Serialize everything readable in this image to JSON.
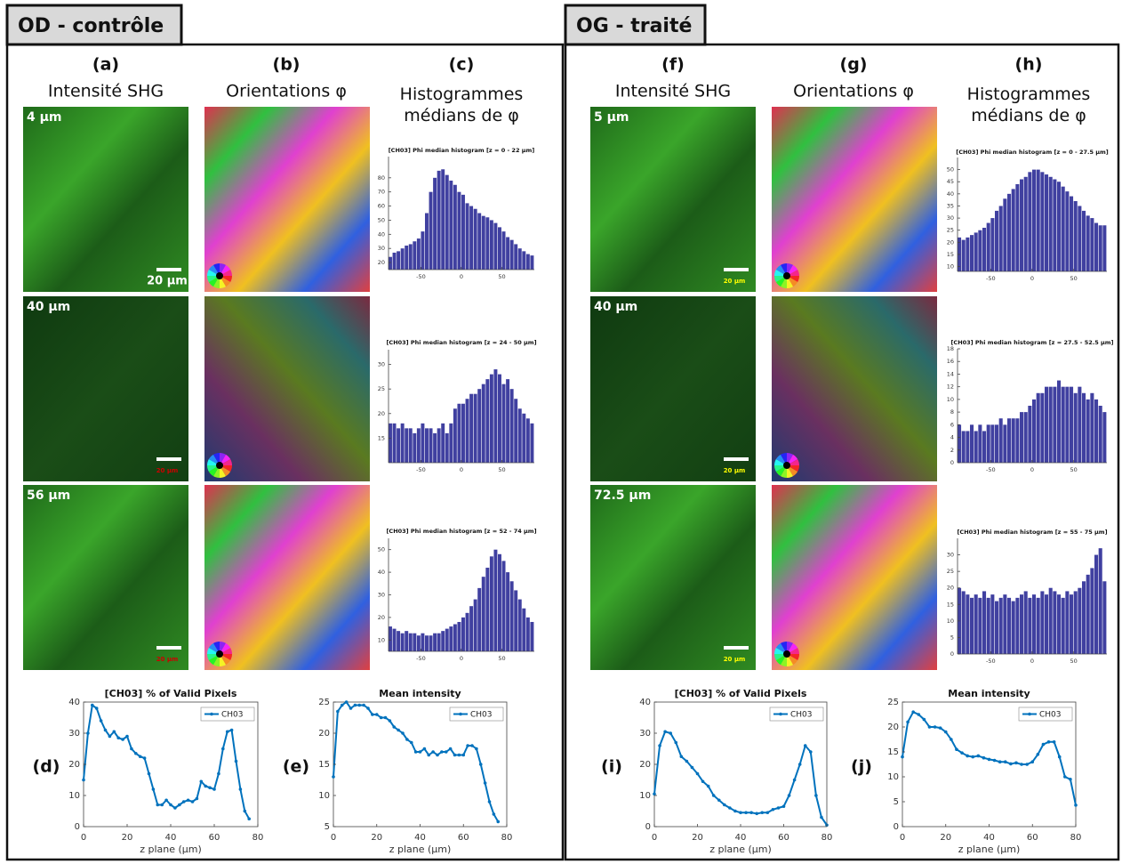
{
  "panels": [
    {
      "title": "OD - contrôle",
      "columns": [
        {
          "letter": "(a)",
          "title": "Intensité SHG"
        },
        {
          "letter": "(b)",
          "title": "Orientations φ"
        },
        {
          "letter": "(c)",
          "title": "Histogrammes médians de φ"
        }
      ],
      "depth_labels": [
        "4 µm",
        "40 µm",
        "56 µm"
      ],
      "scale_labels": [
        "20 µm",
        "20 µm",
        "20 µm"
      ],
      "plot_letters": [
        "(d)",
        "(e)"
      ]
    },
    {
      "title": "OG - traité",
      "columns": [
        {
          "letter": "(f)",
          "title": "Intensité SHG"
        },
        {
          "letter": "(g)",
          "title": "Orientations φ"
        },
        {
          "letter": "(h)",
          "title": "Histogrammes médians de φ"
        }
      ],
      "depth_labels": [
        "5 µm",
        "40 µm",
        "72.5 µm"
      ],
      "scale_labels": [
        "20 µm",
        "20 µm",
        "20 µm"
      ],
      "plot_letters": [
        "(i)",
        "(j)"
      ]
    }
  ],
  "chart_data": [
    {
      "type": "histogram",
      "title": "[CH03] Phi median histogram [z = 0 - 22 µm]",
      "color": "#4040a0",
      "bins": [
        -90,
        -85,
        -80,
        -75,
        -70,
        -65,
        -60,
        -55,
        -50,
        -45,
        -40,
        -35,
        -30,
        -25,
        -20,
        -15,
        -10,
        -5,
        0,
        5,
        10,
        15,
        20,
        25,
        30,
        35,
        40,
        45,
        50,
        55,
        60,
        65,
        70,
        75,
        80,
        85,
        90
      ],
      "values": [
        24,
        27,
        28,
        30,
        32,
        33,
        35,
        37,
        42,
        55,
        70,
        80,
        85,
        86,
        82,
        78,
        75,
        70,
        68,
        62,
        60,
        58,
        55,
        53,
        52,
        50,
        48,
        45,
        42,
        38,
        36,
        33,
        30,
        28,
        26,
        25
      ],
      "xlim": [
        -90,
        90
      ],
      "ylim": [
        15,
        95
      ],
      "xticks": [
        -50,
        0,
        50
      ],
      "yticks": [
        20,
        30,
        40,
        50,
        60,
        70,
        80
      ]
    },
    {
      "type": "histogram",
      "title": "[CH03] Phi median histogram [z = 24 - 50 µm]",
      "color": "#4040a0",
      "bins": [
        -90,
        -85,
        -80,
        -75,
        -70,
        -65,
        -60,
        -55,
        -50,
        -45,
        -40,
        -35,
        -30,
        -25,
        -20,
        -15,
        -10,
        -5,
        0,
        5,
        10,
        15,
        20,
        25,
        30,
        35,
        40,
        45,
        50,
        55,
        60,
        65,
        70,
        75,
        80,
        85,
        90
      ],
      "values": [
        18,
        18,
        17,
        18,
        17,
        17,
        16,
        17,
        18,
        17,
        17,
        16,
        17,
        18,
        16,
        18,
        21,
        22,
        22,
        23,
        24,
        24,
        25,
        26,
        27,
        28,
        29,
        28,
        26,
        27,
        25,
        23,
        21,
        20,
        19,
        18
      ],
      "xlim": [
        -90,
        90
      ],
      "ylim": [
        10,
        33
      ],
      "xticks": [
        -50,
        0,
        50
      ],
      "yticks": [
        15,
        20,
        25,
        30
      ]
    },
    {
      "type": "histogram",
      "title": "[CH03] Phi median histogram [z = 52 - 74 µm]",
      "color": "#4040a0",
      "bins": [
        -90,
        -85,
        -80,
        -75,
        -70,
        -65,
        -60,
        -55,
        -50,
        -45,
        -40,
        -35,
        -30,
        -25,
        -20,
        -15,
        -10,
        -5,
        0,
        5,
        10,
        15,
        20,
        25,
        30,
        35,
        40,
        45,
        50,
        55,
        60,
        65,
        70,
        75,
        80,
        85,
        90
      ],
      "values": [
        16,
        15,
        14,
        13,
        14,
        13,
        13,
        12,
        13,
        12,
        12,
        13,
        13,
        14,
        15,
        16,
        17,
        18,
        20,
        22,
        25,
        28,
        33,
        38,
        42,
        47,
        50,
        48,
        45,
        40,
        36,
        32,
        28,
        24,
        20,
        18
      ],
      "xlim": [
        -90,
        90
      ],
      "ylim": [
        5,
        55
      ],
      "xticks": [
        -50,
        0,
        50
      ],
      "yticks": [
        10,
        20,
        30,
        40,
        50
      ]
    },
    {
      "type": "line",
      "title": "[CH03] % of Valid Pixels",
      "xlabel": "z plane (µm)",
      "x": [
        0,
        2,
        4,
        6,
        8,
        10,
        12,
        14,
        16,
        18,
        20,
        22,
        24,
        26,
        28,
        30,
        32,
        34,
        36,
        38,
        40,
        42,
        44,
        46,
        48,
        50,
        52,
        54,
        56,
        58,
        60,
        62,
        64,
        66,
        68,
        70,
        72,
        74,
        76
      ],
      "series": [
        {
          "name": "CH03",
          "color": "#0072bd",
          "values": [
            15,
            30,
            39,
            38,
            34,
            31,
            29,
            30.5,
            28.5,
            28,
            29,
            25,
            23.5,
            22.5,
            22,
            17,
            12,
            7,
            7,
            8.5,
            7,
            6,
            7,
            8,
            8.5,
            8,
            9,
            14.5,
            13,
            12.5,
            12,
            17,
            25,
            30.5,
            31,
            21,
            12,
            5,
            2.5
          ]
        }
      ],
      "xlim": [
        0,
        80
      ],
      "ylim": [
        0,
        40
      ],
      "xticks": [
        0,
        20,
        40,
        60,
        80
      ],
      "yticks": [
        0,
        10,
        20,
        30,
        40
      ]
    },
    {
      "type": "line",
      "title": "Mean intensity",
      "xlabel": "z plane (µm)",
      "x": [
        0,
        2,
        4,
        6,
        8,
        10,
        12,
        14,
        16,
        18,
        20,
        22,
        24,
        26,
        28,
        30,
        32,
        34,
        36,
        38,
        40,
        42,
        44,
        46,
        48,
        50,
        52,
        54,
        56,
        58,
        60,
        62,
        64,
        66,
        68,
        70,
        72,
        74,
        76
      ],
      "series": [
        {
          "name": "CH03",
          "color": "#0072bd",
          "values": [
            13,
            23.5,
            24.5,
            25,
            24,
            24.5,
            24.5,
            24.5,
            24,
            23,
            23,
            22.5,
            22.5,
            22,
            21,
            20.5,
            20,
            19,
            18.5,
            17,
            17,
            17.5,
            16.5,
            17,
            16.5,
            17,
            17,
            17.5,
            16.5,
            16.5,
            16.5,
            18,
            18,
            17.5,
            15,
            12,
            9,
            7,
            5.8
          ]
        }
      ],
      "xlim": [
        0,
        80
      ],
      "ylim": [
        5,
        25
      ],
      "xticks": [
        0,
        20,
        40,
        60,
        80
      ],
      "yticks": [
        5,
        10,
        15,
        20,
        25
      ]
    },
    {
      "type": "histogram",
      "title": "[CH03] Phi median histogram [z = 0 - 27.5 µm]",
      "color": "#4040a0",
      "bins": [
        -90,
        -85,
        -80,
        -75,
        -70,
        -65,
        -60,
        -55,
        -50,
        -45,
        -40,
        -35,
        -30,
        -25,
        -20,
        -15,
        -10,
        -5,
        0,
        5,
        10,
        15,
        20,
        25,
        30,
        35,
        40,
        45,
        50,
        55,
        60,
        65,
        70,
        75,
        80,
        85,
        90
      ],
      "values": [
        22,
        21,
        22,
        23,
        24,
        25,
        26,
        28,
        30,
        33,
        35,
        38,
        40,
        42,
        44,
        46,
        47,
        49,
        50,
        50,
        49,
        48,
        47,
        46,
        45,
        43,
        41,
        39,
        37,
        35,
        33,
        31,
        30,
        28,
        27,
        27
      ],
      "xlim": [
        -90,
        90
      ],
      "ylim": [
        8,
        55
      ],
      "xticks": [
        -50,
        0,
        50
      ],
      "yticks": [
        10,
        15,
        20,
        25,
        30,
        35,
        40,
        45,
        50
      ]
    },
    {
      "type": "histogram",
      "title": "[CH03] Phi median histogram [z = 27.5 - 52.5 µm]",
      "color": "#4040a0",
      "bins": [
        -90,
        -85,
        -80,
        -75,
        -70,
        -65,
        -60,
        -55,
        -50,
        -45,
        -40,
        -35,
        -30,
        -25,
        -20,
        -15,
        -10,
        -5,
        0,
        5,
        10,
        15,
        20,
        25,
        30,
        35,
        40,
        45,
        50,
        55,
        60,
        65,
        70,
        75,
        80,
        85,
        90
      ],
      "values": [
        6,
        5,
        5,
        6,
        5,
        6,
        5,
        6,
        6,
        6,
        7,
        6,
        7,
        7,
        7,
        8,
        8,
        9,
        10,
        11,
        11,
        12,
        12,
        12,
        13,
        12,
        12,
        12,
        11,
        12,
        11,
        10,
        11,
        10,
        9,
        8
      ],
      "xlim": [
        -90,
        90
      ],
      "ylim": [
        0,
        18
      ],
      "xticks": [
        -50,
        0,
        50
      ],
      "yticks": [
        0,
        2,
        4,
        6,
        8,
        10,
        12,
        14,
        16,
        18
      ]
    },
    {
      "type": "histogram",
      "title": "[CH03] Phi median histogram [z = 55 - 75 µm]",
      "color": "#4040a0",
      "bins": [
        -90,
        -85,
        -80,
        -75,
        -70,
        -65,
        -60,
        -55,
        -50,
        -45,
        -40,
        -35,
        -30,
        -25,
        -20,
        -15,
        -10,
        -5,
        0,
        5,
        10,
        15,
        20,
        25,
        30,
        35,
        40,
        45,
        50,
        55,
        60,
        65,
        70,
        75,
        80,
        85,
        90
      ],
      "values": [
        20,
        19,
        18,
        17,
        18,
        17,
        19,
        17,
        18,
        16,
        17,
        18,
        17,
        16,
        17,
        18,
        19,
        17,
        18,
        17,
        19,
        18,
        20,
        19,
        18,
        17,
        19,
        18,
        19,
        20,
        22,
        24,
        26,
        30,
        32,
        22
      ],
      "xlim": [
        -90,
        90
      ],
      "ylim": [
        0,
        35
      ],
      "xticks": [
        -50,
        0,
        50
      ],
      "yticks": [
        0,
        5,
        10,
        15,
        20,
        25,
        30
      ]
    },
    {
      "type": "line",
      "title": "[CH03] % of Valid Pixels",
      "xlabel": "z plane (µm)",
      "x": [
        0,
        2.5,
        5,
        7.5,
        10,
        12.5,
        15,
        17.5,
        20,
        22.5,
        25,
        27.5,
        30,
        32.5,
        35,
        37.5,
        40,
        42.5,
        45,
        47.5,
        50,
        52.5,
        55,
        57.5,
        60,
        62.5,
        65,
        67.5,
        70,
        72.5,
        75,
        77.5,
        80
      ],
      "series": [
        {
          "name": "CH03",
          "color": "#0072bd",
          "values": [
            10.5,
            26,
            30.5,
            30,
            27,
            22.5,
            21,
            19,
            17,
            14.5,
            13,
            10,
            8.5,
            7,
            6,
            5,
            4.5,
            4.5,
            4.5,
            4.2,
            4.5,
            4.5,
            5.5,
            6,
            6.5,
            10,
            15,
            20,
            26,
            24,
            10,
            3,
            0.5
          ]
        }
      ],
      "xlim": [
        0,
        80
      ],
      "ylim": [
        0,
        40
      ],
      "xticks": [
        0,
        20,
        40,
        60,
        80
      ],
      "yticks": [
        0,
        10,
        20,
        30,
        40
      ]
    },
    {
      "type": "line",
      "title": "Mean intensity",
      "xlabel": "z plane (µm)",
      "x": [
        0,
        2.5,
        5,
        7.5,
        10,
        12.5,
        15,
        17.5,
        20,
        22.5,
        25,
        27.5,
        30,
        32.5,
        35,
        37.5,
        40,
        42.5,
        45,
        47.5,
        50,
        52.5,
        55,
        57.5,
        60,
        62.5,
        65,
        67.5,
        70,
        72.5,
        75,
        77.5,
        80
      ],
      "series": [
        {
          "name": "CH03",
          "color": "#0072bd",
          "values": [
            14,
            21,
            23,
            22.5,
            21.5,
            20,
            20,
            19.8,
            19,
            17.5,
            15.5,
            14.8,
            14.2,
            14,
            14.2,
            13.8,
            13.5,
            13.3,
            13,
            13,
            12.6,
            12.8,
            12.5,
            12.5,
            13,
            14.5,
            16.5,
            17,
            17,
            14,
            10,
            9.5,
            4.3
          ]
        }
      ],
      "xlim": [
        0,
        80
      ],
      "ylim": [
        0,
        25
      ],
      "xticks": [
        0,
        20,
        40,
        60,
        80
      ],
      "yticks": [
        0,
        5,
        10,
        15,
        20,
        25
      ]
    }
  ]
}
